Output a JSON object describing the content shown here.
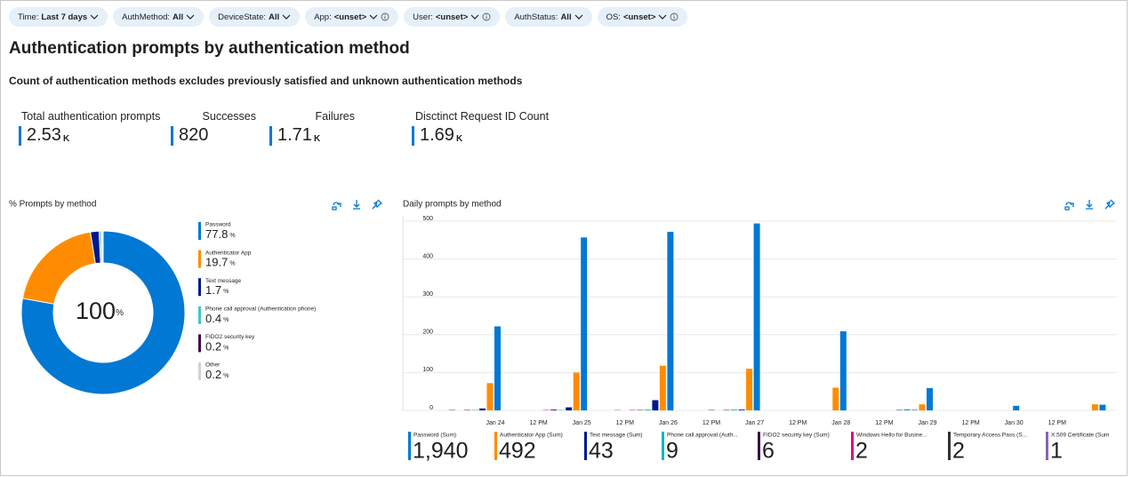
{
  "filters": [
    {
      "label": "Time:",
      "value": "Last 7 days",
      "info": false
    },
    {
      "label": "AuthMethod:",
      "value": "All",
      "info": false
    },
    {
      "label": "DeviceState:",
      "value": "All",
      "info": false
    },
    {
      "label": "App:",
      "value": "<unset>",
      "info": true
    },
    {
      "label": "User:",
      "value": "<unset>",
      "info": true
    },
    {
      "label": "AuthStatus:",
      "value": "All",
      "info": false
    },
    {
      "label": "OS:",
      "value": "<unset>",
      "info": true
    }
  ],
  "header": {
    "title": "Authentication prompts by authentication method",
    "subtitle": "Count of authentication methods excludes previously satisfied and unknown authentication methods"
  },
  "kpis": [
    {
      "label": "Total authentication prompts",
      "value": 2.53,
      "unit": "K"
    },
    {
      "label": "Successes",
      "value": 820
    },
    {
      "label": "Failures",
      "value": 1.71,
      "unit": "K"
    },
    {
      "label": "Disctinct Request ID Count",
      "value": 1.69,
      "unit": "K"
    }
  ],
  "chart_data": [
    {
      "type": "pie",
      "title": "% Prompts by method",
      "unit": "%",
      "center_value": 100,
      "categories": [
        "Password",
        "Authenticator App",
        "Text message",
        "Phone call approval (Authentication phone)",
        "FIDO2 security key",
        "Other"
      ],
      "values": [
        77.8,
        19.7,
        1.7,
        0.4,
        0.2,
        0.2
      ],
      "colors": [
        "#0078d4",
        "#ff8c00",
        "#00188f",
        "#40c8c8",
        "#3b0a45",
        "#d2d2d2"
      ]
    },
    {
      "type": "bar",
      "title": "Daily prompts by method",
      "categories": [
        "Jan 24",
        "12 PM",
        "Jan 25",
        "12 PM",
        "Jan 26",
        "12 PM",
        "Jan 27",
        "12 PM",
        "Jan 28",
        "12 PM",
        "Jan 29",
        "12 PM",
        "Jan 30",
        "12 PM",
        null
      ],
      "ylim": [
        0,
        500
      ],
      "yticks": [
        0,
        100,
        200,
        300,
        400,
        500
      ],
      "grid": true,
      "series": [
        {
          "name": "Password (Sum)",
          "total_label": "1,940",
          "color": "#0078d4",
          "values": [
            222,
            null,
            457,
            null,
            472,
            null,
            494,
            null,
            209,
            null,
            59,
            null,
            12,
            null,
            15
          ]
        },
        {
          "name": "Authenticator App (Sum)",
          "total_label": "492",
          "color": "#ff8c00",
          "values": [
            72,
            null,
            100,
            null,
            118,
            null,
            110,
            null,
            60,
            null,
            16,
            null,
            0,
            null,
            16
          ]
        },
        {
          "name": "Text message (Sum)",
          "total_label": "43",
          "color": "#00188f",
          "values": [
            5,
            null,
            8,
            null,
            27,
            null,
            2,
            null,
            0,
            null,
            1,
            null,
            0,
            null,
            0
          ]
        },
        {
          "name": "Phone call approval (Auth...",
          "total_label": "9",
          "color": "#00b7c3",
          "values": [
            1,
            null,
            1,
            null,
            2,
            null,
            2,
            null,
            0,
            null,
            3,
            null,
            0,
            null,
            0
          ]
        },
        {
          "name": "FIDO2 security key (Sum)",
          "total_label": "6",
          "color": "#3b0a45",
          "values": [
            1,
            null,
            2,
            null,
            1,
            null,
            1,
            null,
            0,
            null,
            1,
            null,
            0,
            null,
            0
          ]
        },
        {
          "name": "Windows Hello for Busine...",
          "total_label": "2",
          "color": "#e3008c",
          "values": [
            0,
            null,
            1,
            null,
            1,
            null,
            0,
            null,
            0,
            null,
            0,
            null,
            0,
            null,
            0
          ]
        },
        {
          "name": "Temporary Access Pass (S...",
          "total_label": "2",
          "color": "#323130",
          "values": [
            1,
            null,
            0,
            null,
            0,
            null,
            1,
            null,
            0,
            null,
            0,
            null,
            0,
            null,
            0
          ]
        },
        {
          "name": "X.509 Certificate (Sum",
          "total_label": "1",
          "color": "#8764b8",
          "values": [
            0,
            null,
            0,
            null,
            1,
            null,
            0,
            null,
            0,
            null,
            0,
            null,
            0,
            null,
            0
          ]
        }
      ]
    }
  ]
}
